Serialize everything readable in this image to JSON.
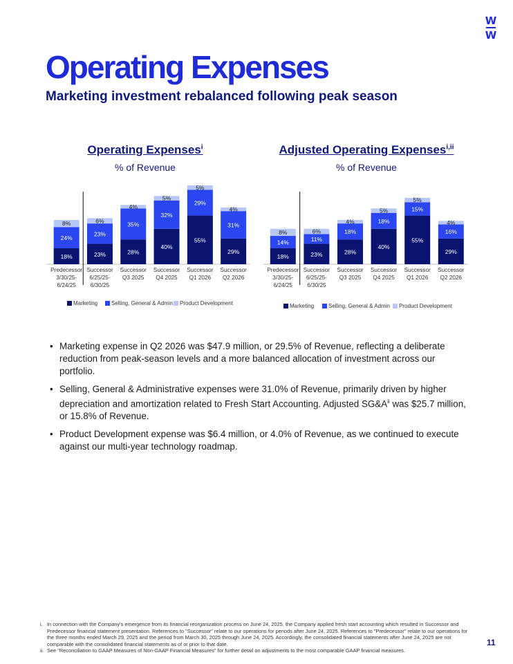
{
  "logo": {
    "top": "W",
    "bottom": "W"
  },
  "page": {
    "title": "Operating Expenses",
    "subtitle": "Marketing investment rebalanced following peak season",
    "page_number": "11"
  },
  "colors": {
    "marketing": "#0a1470",
    "sga": "#2946f0",
    "product_development": "#b7c8f5",
    "divider": "#333333",
    "title_blue": "#1e2bd6"
  },
  "chart_data": [
    {
      "type": "bar",
      "stacked": true,
      "title": "Operating Expenses",
      "title_sup": "i",
      "subtitle": "% of Revenue",
      "categories": [
        [
          "Predecessor",
          "3/30/25-",
          "6/24/25"
        ],
        [
          "Successor",
          "6/25/25-",
          "6/30/25"
        ],
        [
          "Successor",
          "Q3 2025"
        ],
        [
          "Successor",
          "Q4 2025"
        ],
        [
          "Successor",
          "Q1 2026"
        ],
        [
          "Successor",
          "Q2 2026"
        ]
      ],
      "series": [
        {
          "name": "Marketing",
          "values": [
            18,
            23,
            28,
            40,
            55,
            29
          ]
        },
        {
          "name": "Selling, General & Admin",
          "values": [
            24,
            23,
            35,
            32,
            29,
            31
          ]
        },
        {
          "name": "Product Development",
          "values": [
            8,
            6,
            4,
            5,
            5,
            4
          ]
        }
      ],
      "labels": [
        [
          "18%",
          "23%",
          "28%",
          "40%",
          "55%",
          "29%"
        ],
        [
          "24%",
          "23%",
          "35%",
          "32%",
          "29%",
          "31%"
        ],
        [
          "8%",
          "6%",
          "4%",
          "5%",
          "5%",
          "4%"
        ]
      ],
      "divider_after_category": 0,
      "legend_position": "bottom"
    },
    {
      "type": "bar",
      "stacked": true,
      "title": "Adjusted Operating Expenses",
      "title_sup": "i,ii",
      "subtitle": "% of Revenue",
      "categories": [
        [
          "Predecessor",
          "3/30/25-",
          "6/24/25"
        ],
        [
          "Successor",
          "6/25/25-",
          "6/30/25"
        ],
        [
          "Successor",
          "Q3 2025"
        ],
        [
          "Successor",
          "Q4 2025"
        ],
        [
          "Successor",
          "Q1 2026"
        ],
        [
          "Successor",
          "Q2 2026"
        ]
      ],
      "series": [
        {
          "name": "Marketing",
          "values": [
            18,
            23,
            28,
            40,
            55,
            29
          ]
        },
        {
          "name": "Selling, General & Admin",
          "values": [
            14,
            11,
            18,
            18,
            15,
            16
          ]
        },
        {
          "name": "Product Development",
          "values": [
            8,
            6,
            4,
            5,
            5,
            4
          ]
        }
      ],
      "labels": [
        [
          "18%",
          "23%",
          "28%",
          "40%",
          "55%",
          "29%"
        ],
        [
          "14%",
          "11%",
          "18%",
          "18%",
          "15%",
          "16%"
        ],
        [
          "8%",
          "6%",
          "4%",
          "5%",
          "5%",
          "4%"
        ]
      ],
      "divider_after_category": 0,
      "legend_position": "bottom"
    }
  ],
  "bullets": [
    {
      "text": "Marketing expense in Q2 2026 was $47.9 million, or 29.5% of Revenue, reflecting a deliberate reduction from peak-season levels and a more balanced allocation of investment across our portfolio."
    },
    {
      "pre": "Selling, General & Administrative expenses were 31.0% of Revenue, primarily driven by higher depreciation and amortization related to Fresh Start Accounting. Adjusted SG&A",
      "sup": "ii",
      "post": " was $25.7 million, or 15.8% of Revenue."
    },
    {
      "text": "Product Development expense was $6.4 million, or 4.0% of Revenue, as we continued to execute against our multi-year technology roadmap."
    }
  ],
  "footnotes": [
    {
      "marker": "i.",
      "text": "In connection with the Company's emergence from its financial reorganization process on June 24, 2025, the Company applied fresh start accounting which resulted in Successor and Predecessor financial statement presentation. References to \"Successor\" relate to our operations for periods after June 24, 2025. References to \"Predecessor\" relate to our operations for the three months ended March 29, 2025 and the period from March 30, 2025 through June 24, 2025. Accordingly, the consolidated financial statements after June 24, 2025 are not comparable with the consolidated financial statements as of or prior to that date."
    },
    {
      "marker": "ii.",
      "text": "See \"Reconciliation to GAAP Measures of Non-GAAP Financial Measures\" for further detail on adjustments to the most comparable GAAP financial measures."
    }
  ]
}
